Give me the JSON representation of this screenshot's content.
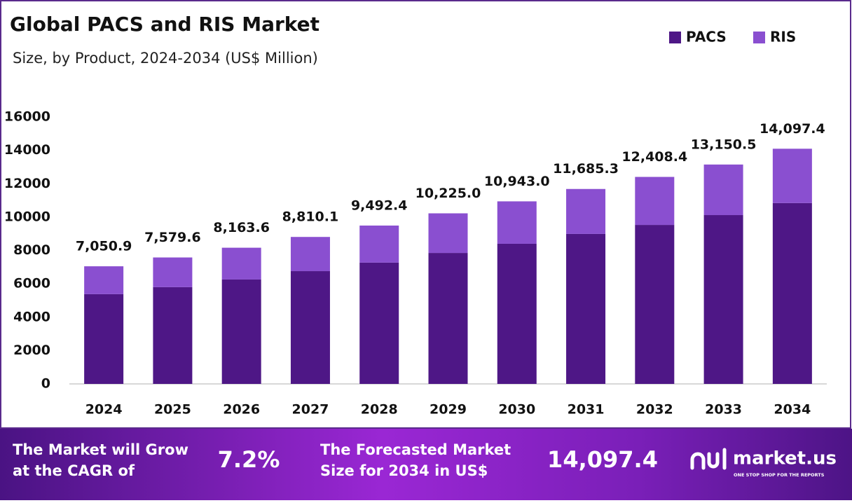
{
  "chart_data": {
    "type": "stacked_bar",
    "title": "Global PACS and RIS Market",
    "subtitle": "Size, by Product, 2024-2034 (US$ Million)",
    "categories": [
      "2024",
      "2025",
      "2026",
      "2027",
      "2028",
      "2029",
      "2030",
      "2031",
      "2032",
      "2033",
      "2034"
    ],
    "series": [
      {
        "name": "PACS",
        "color": "#4e1786",
        "values": [
          5380,
          5800,
          6260,
          6760,
          7270,
          7850,
          8400,
          8990,
          9530,
          10120,
          10840
        ]
      },
      {
        "name": "RIS",
        "color": "#8a4fd0",
        "values": [
          1670.9,
          1779.6,
          1903.6,
          2050.1,
          2222.4,
          2375.0,
          2543.0,
          2695.3,
          2878.4,
          3030.5,
          3257.4
        ]
      }
    ],
    "totals": [
      7050.9,
      7579.6,
      8163.6,
      8810.1,
      9492.4,
      10225.0,
      10943.0,
      11685.3,
      12408.4,
      13150.5,
      14097.4
    ],
    "total_labels": [
      "7,050.9",
      "7,579.6",
      "8,163.6",
      "8,810.1",
      "9,492.4",
      "10,225.0",
      "10,943.0",
      "11,685.3",
      "12,408.4",
      "13,150.5",
      "14,097.4"
    ],
    "ylim": [
      0,
      16000
    ],
    "yticks": [
      0,
      2000,
      4000,
      6000,
      8000,
      10000,
      12000,
      14000,
      16000
    ],
    "grid": false,
    "legend": "top-right"
  },
  "footer": {
    "cagr_text": [
      "The Market will Grow",
      "at the CAGR of"
    ],
    "cagr": "7.2%",
    "forecast_text": [
      "The Forecasted Market",
      "Size for 2034 in US$"
    ],
    "forecast": "14,097.4",
    "brand": "market.us",
    "tagline": "ONE STOP SHOP FOR THE REPORTS"
  }
}
